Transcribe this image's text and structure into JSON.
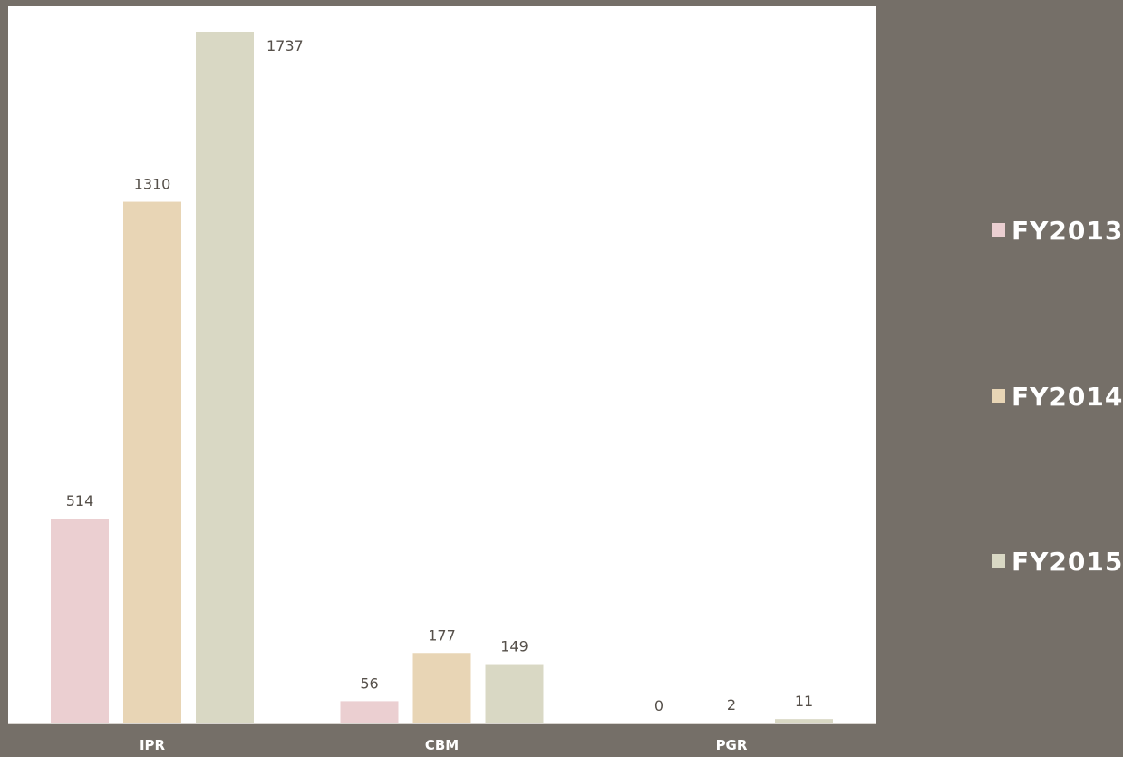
{
  "chart_data": {
    "type": "bar",
    "categories": [
      "IPR",
      "CBM",
      "PGR"
    ],
    "series": [
      {
        "name": "FY2013",
        "color": "#ebcfd1",
        "values": [
          514,
          56,
          0
        ]
      },
      {
        "name": "FY2014",
        "color": "#e8d5b5",
        "values": [
          1310,
          177,
          2
        ]
      },
      {
        "name": "FY2015",
        "color": "#d9d8c4",
        "values": [
          1737,
          149,
          11
        ]
      }
    ],
    "title": "",
    "xlabel": "",
    "ylabel": "",
    "ylim": [
      0,
      1737
    ],
    "grid": false,
    "legend_position": "right",
    "data_labels": true
  },
  "colors": {
    "page_background": "#756f68",
    "plot_background": "#ffffff",
    "value_label_text": "#56504a",
    "category_label_text": "#ffffff",
    "legend_text": "#ffffff"
  }
}
